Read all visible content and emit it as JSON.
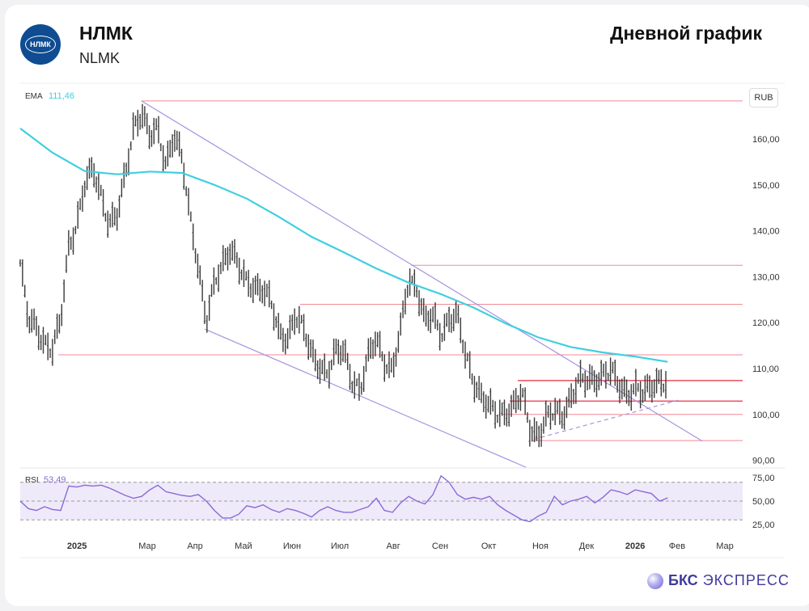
{
  "header": {
    "logo_text": "НЛМК",
    "title": "НЛМК",
    "subtitle": "NLMK",
    "chart_type": "Дневной график"
  },
  "footer": {
    "brand_bold": "БКС",
    "brand_rest": "ЭКСПРЕСС"
  },
  "colors": {
    "bars": "#3a3a3a",
    "ema": "#3fcfe0",
    "levels": "#f08a94",
    "levels_strong": "#ec5a6a",
    "trend": "#a994e0",
    "rsi": "#8a6ad8",
    "rsi_band": "#efeafa"
  },
  "chart_data": {
    "type": "line",
    "title": "НЛМК — Дневной график",
    "currency": "RUB",
    "ema": {
      "label": "EMA",
      "value_label": "111,46",
      "start_bar": 0,
      "step_bars": 14.04,
      "values": [
        162.3,
        157,
        153,
        152.3,
        152.9,
        152.6,
        150,
        147,
        143,
        138.7,
        135.3,
        131.8,
        128.7,
        126.2,
        123.3,
        119.8,
        116.8,
        114.7,
        113.5,
        112.6,
        111.46
      ]
    },
    "price": {
      "start_bar": 0,
      "step_bars": 3.51,
      "close_path": [
        133,
        120,
        119,
        116,
        114,
        120,
        137,
        142,
        150,
        153,
        148,
        142,
        143,
        152,
        163,
        166,
        160,
        162,
        155,
        161,
        155,
        143,
        133,
        120,
        128,
        133,
        137,
        132,
        128,
        128,
        128,
        124,
        117,
        117,
        122,
        118,
        113,
        111,
        109,
        113,
        114,
        108,
        105,
        112,
        117,
        112,
        109,
        118,
        130,
        128,
        120,
        121,
        118,
        121,
        121,
        113,
        108,
        104,
        101,
        100,
        101,
        102,
        104,
        97,
        96,
        99,
        100,
        100,
        104,
        107,
        107,
        108,
        109,
        109,
        106,
        105,
        106,
        104,
        106,
        108,
        107
      ]
    },
    "levels": [
      {
        "price": 168.3,
        "from_bar": 52.6
      },
      {
        "price": 132.5,
        "from_bar": 169.5
      },
      {
        "price": 124.0,
        "from_bar": 121.4
      },
      {
        "price": 113.0,
        "from_bar": 16.5
      },
      {
        "price": 107.4,
        "from_bar": 215.8,
        "strong": true
      },
      {
        "price": 102.9,
        "from_bar": 212.3,
        "strong": true
      },
      {
        "price": 100.0,
        "from_bar": 208.8
      },
      {
        "price": 94.3,
        "from_bar": 222.1
      }
    ],
    "trendlines": [
      {
        "from": [
          52.6,
          168.3
        ],
        "to": [
          295.8,
          94.2
        ],
        "dashed": false
      },
      {
        "from": [
          80.0,
          118.6
        ],
        "to": [
          219.3,
          88.5
        ],
        "dashed": false
      },
      {
        "from": [
          222.8,
          94.6
        ],
        "to": [
          285.3,
          103.1
        ],
        "dashed": true
      }
    ],
    "y_axis": {
      "ylim": [
        86.3,
        176.6
      ],
      "ticks": [
        {
          "value": 160,
          "label": "160,00"
        },
        {
          "value": 150,
          "label": "150,00"
        },
        {
          "value": 140,
          "label": "140,00"
        },
        {
          "value": 130,
          "label": "130,00"
        },
        {
          "value": 120,
          "label": "120,00"
        },
        {
          "value": 110,
          "label": "110,00"
        },
        {
          "value": 100,
          "label": "100,00"
        },
        {
          "value": 90,
          "label": "90,00"
        }
      ]
    },
    "x_axis": {
      "ticks": [
        {
          "label": "2025",
          "bar": 24.6,
          "bold": true
        },
        {
          "label": "Мар",
          "bar": 55.1
        },
        {
          "label": "Апр",
          "bar": 75.8
        },
        {
          "label": "Май",
          "bar": 96.8
        },
        {
          "label": "Июн",
          "bar": 117.9
        },
        {
          "label": "Июл",
          "bar": 138.6
        },
        {
          "label": "Авг",
          "bar": 161.8
        },
        {
          "label": "Сен",
          "bar": 182.1
        },
        {
          "label": "Окт",
          "bar": 203.2
        },
        {
          "label": "Ноя",
          "bar": 225.6
        },
        {
          "label": "Дек",
          "bar": 245.6
        },
        {
          "label": "2026",
          "bar": 266.7,
          "bold": true
        },
        {
          "label": "Фев",
          "bar": 284.9
        },
        {
          "label": "Мар",
          "bar": 305.6
        }
      ]
    },
    "rsi": {
      "label": "RSI",
      "value_label": "53,49",
      "band": [
        30,
        70
      ],
      "midline": 50,
      "start_bar": 0,
      "step_bars": 3.51,
      "values": [
        50,
        42,
        40,
        44,
        41,
        40,
        66,
        65,
        67,
        66,
        67,
        64,
        60,
        56,
        53,
        55,
        62,
        67,
        60,
        58,
        56,
        55,
        57,
        50,
        40,
        32,
        32,
        36,
        45,
        43,
        46,
        41,
        38,
        42,
        40,
        37,
        33,
        40,
        44,
        40,
        38,
        38,
        41,
        44,
        53,
        40,
        38,
        48,
        55,
        50,
        47,
        57,
        77,
        70,
        57,
        52,
        54,
        52,
        55,
        46,
        40,
        35,
        30,
        28,
        34,
        38,
        55,
        46,
        50,
        52,
        55,
        48,
        54,
        62,
        60,
        57,
        62,
        60,
        58,
        50,
        53.49
      ],
      "ticks": [
        {
          "value": 75,
          "label": "75,00"
        },
        {
          "value": 50,
          "label": "50,00"
        },
        {
          "value": 25,
          "label": "25,00"
        }
      ]
    }
  }
}
